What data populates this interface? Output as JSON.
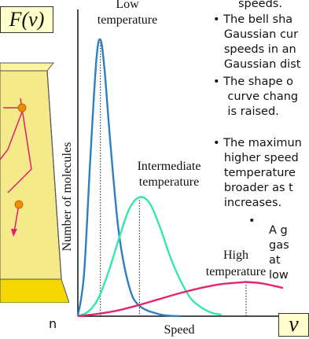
{
  "fv_label": "F(v)",
  "v_label": "v",
  "partial_text_n": "n",
  "notes": {
    "speeds_line": "speeds.",
    "bullet1": "• The bell sha\n   Gaussian cur\n   speeds in an\n   Gaussian dist",
    "bullet2": "• The shape o\n    curve chang\n    is raised.",
    "bullet3": "• The maximun\n   higher speed\n   temperature\n   broader as t\n   increases.",
    "bullet4_dot": "•",
    "bullet4": "A g\ngas\nat\nlow"
  },
  "colors": {
    "low": "#2e7fbf",
    "intermediate": "#33e6b3",
    "high": "#e6246e",
    "axis": "#111111",
    "box_fill": "#ffffcc",
    "cube_yellow": "#f5d700",
    "cube_edge": "#555555",
    "molecule": "#f08c00",
    "trajectory": "#e0206e"
  },
  "chart_data": {
    "type": "line",
    "xlabel": "Speed",
    "ylabel": "Number of molecules",
    "xlim": [
      0,
      10
    ],
    "ylim": [
      0,
      10
    ],
    "grid": false,
    "legend": "none",
    "series": [
      {
        "name": "Low temperature",
        "label_lines": [
          "Low",
          "temperature"
        ],
        "color_key": "low",
        "peak_x": 1.1,
        "peak_y": 9.3,
        "x": [
          0,
          0.3,
          0.6,
          0.9,
          1.1,
          1.3,
          1.6,
          2.0,
          2.5,
          3.0,
          4.0,
          5.0
        ],
        "y": [
          0,
          1.4,
          5.2,
          8.6,
          9.3,
          8.3,
          5.7,
          2.8,
          1.0,
          0.35,
          0.06,
          0.0
        ]
      },
      {
        "name": "Intermediate temperature",
        "label_lines": [
          "Intermediate",
          "temperature"
        ],
        "color_key": "intermediate",
        "peak_x": 3.0,
        "peak_y": 4.0,
        "x": [
          0,
          0.5,
          1.0,
          1.5,
          2.0,
          2.5,
          3.0,
          3.5,
          4.0,
          4.5,
          5.0,
          5.5,
          6.0,
          6.5,
          7.0
        ],
        "y": [
          0,
          0.15,
          0.6,
          1.5,
          2.6,
          3.6,
          4.0,
          3.8,
          3.0,
          2.0,
          1.2,
          0.6,
          0.3,
          0.12,
          0.05
        ]
      },
      {
        "name": "High temperature",
        "label_lines": [
          "High",
          "temperature"
        ],
        "color_key": "high",
        "peak_x": 8.2,
        "peak_y": 1.15,
        "x": [
          0,
          1.0,
          2.0,
          3.0,
          4.0,
          5.0,
          6.0,
          7.0,
          8.0,
          8.2,
          9.0,
          10.0
        ],
        "y": [
          0,
          0.08,
          0.2,
          0.38,
          0.58,
          0.78,
          0.95,
          1.08,
          1.14,
          1.15,
          1.1,
          0.95
        ]
      }
    ]
  }
}
